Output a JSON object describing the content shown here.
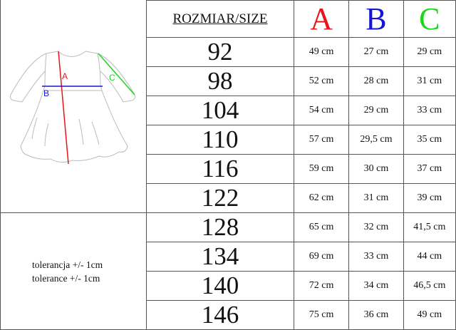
{
  "header": {
    "size_label": "ROZMIAR/SIZE",
    "columns": [
      {
        "label": "A",
        "color": "#e8141c"
      },
      {
        "label": "B",
        "color": "#1414d8"
      },
      {
        "label": "C",
        "color": "#18d818"
      }
    ]
  },
  "diagram": {
    "labels": {
      "A": "A",
      "B": "B",
      "C": "C"
    }
  },
  "tolerance": [
    "tolerancja +/- 1cm",
    "tolerance +/- 1cm"
  ],
  "rows": [
    {
      "size": "92",
      "a": "49 cm",
      "b": "27 cm",
      "c": "29 cm"
    },
    {
      "size": "98",
      "a": "52 cm",
      "b": "28 cm",
      "c": "31 cm"
    },
    {
      "size": "104",
      "a": "54 cm",
      "b": "29 cm",
      "c": "33 cm"
    },
    {
      "size": "110",
      "a": "57 cm",
      "b": "29,5 cm",
      "c": "35 cm"
    },
    {
      "size": "116",
      "a": "59 cm",
      "b": "30 cm",
      "c": "37 cm"
    },
    {
      "size": "122",
      "a": "62 cm",
      "b": "31 cm",
      "c": "39 cm"
    },
    {
      "size": "128",
      "a": "65 cm",
      "b": "32 cm",
      "c": "41,5 cm"
    },
    {
      "size": "134",
      "a": "69 cm",
      "b": "33 cm",
      "c": "44 cm"
    },
    {
      "size": "140",
      "a": "72 cm",
      "b": "34 cm",
      "c": "46,5 cm"
    },
    {
      "size": "146",
      "a": "75 cm",
      "b": "36 cm",
      "c": "49 cm"
    }
  ]
}
